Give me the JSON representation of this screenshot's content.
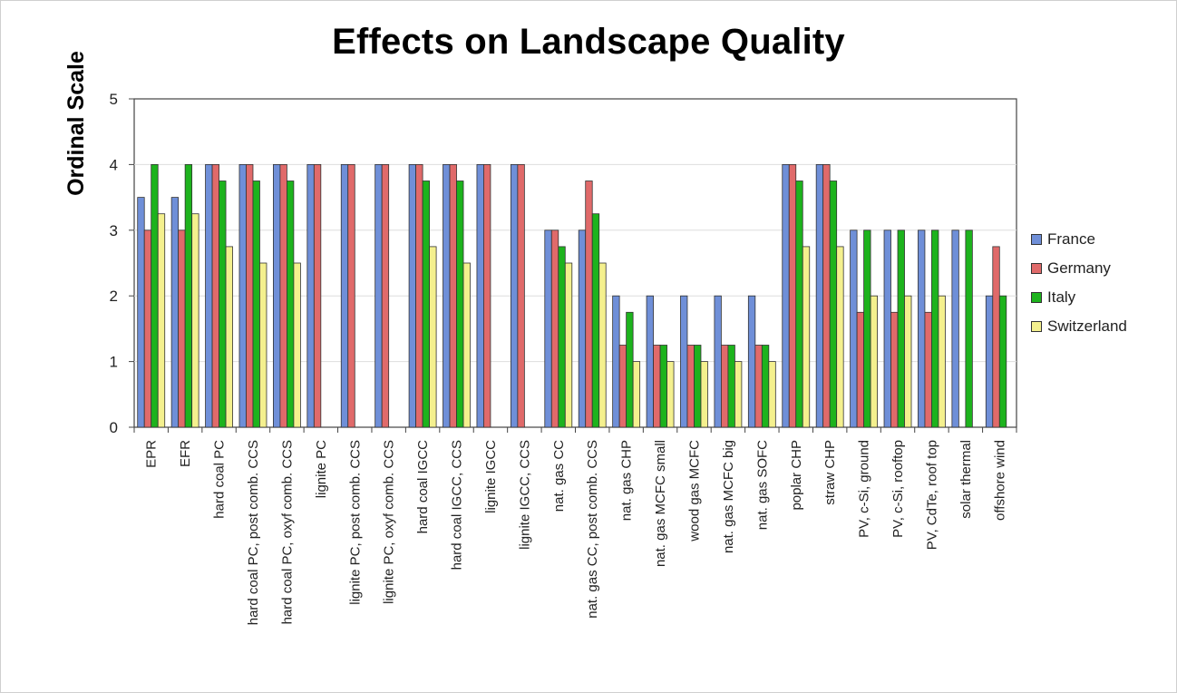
{
  "chart_data": {
    "type": "bar",
    "title": "Effects on Landscape Quality",
    "ylabel": "Ordinal Scale",
    "xlabel": "",
    "ylim": [
      0,
      5
    ],
    "yticks": [
      0,
      1,
      2,
      3,
      4,
      5
    ],
    "grid": true,
    "legend_position": "right",
    "categories": [
      "EPR",
      "EFR",
      "hard coal PC",
      "hard coal PC, post comb. CCS",
      "hard coal PC, oxyf comb. CCS",
      "lignite PC",
      "lignite PC, post comb. CCS",
      "lignite PC, oxyf comb. CCS",
      "hard coal IGCC",
      "hard coal IGCC, CCS",
      "lignite IGCC",
      "lignite IGCC, CCS",
      "nat. gas CC",
      "nat. gas CC, post comb. CCS",
      "nat. gas CHP",
      "nat. gas MCFC small",
      "wood gas MCFC",
      "nat. gas MCFC big",
      "nat. gas SOFC",
      "poplar CHP",
      "straw CHP",
      "PV, c-Si, ground",
      "PV, c-Si, rooftop",
      "PV, CdTe, roof top",
      "solar thermal",
      "offshore wind"
    ],
    "series": [
      {
        "name": "France",
        "color": "#6f8fd8",
        "values": [
          3.5,
          3.5,
          4,
          4,
          4,
          4,
          4,
          4,
          4,
          4,
          4,
          4,
          3,
          3,
          2,
          2,
          2,
          2,
          2,
          4,
          4,
          3,
          3,
          3,
          3,
          2
        ]
      },
      {
        "name": "Germany",
        "color": "#e06a6a",
        "values": [
          3,
          3,
          4,
          4,
          4,
          4,
          4,
          4,
          4,
          4,
          4,
          4,
          3,
          3.75,
          1.25,
          1.25,
          1.25,
          1.25,
          1.25,
          4,
          4,
          1.75,
          1.75,
          1.75,
          null,
          2.75
        ]
      },
      {
        "name": "Italy",
        "color": "#1db31d",
        "values": [
          4,
          4,
          3.75,
          3.75,
          3.75,
          null,
          null,
          null,
          3.75,
          3.75,
          null,
          null,
          2.75,
          3.25,
          1.75,
          1.25,
          1.25,
          1.25,
          1.25,
          3.75,
          3.75,
          3,
          3,
          3,
          3,
          2
        ]
      },
      {
        "name": "Switzerland",
        "color": "#f4f08e",
        "values": [
          3.25,
          3.25,
          2.75,
          2.5,
          2.5,
          null,
          null,
          null,
          2.75,
          2.5,
          null,
          null,
          2.5,
          2.5,
          1,
          1,
          1,
          1,
          1,
          2.75,
          2.75,
          2,
          2,
          2,
          null,
          null
        ]
      }
    ]
  }
}
